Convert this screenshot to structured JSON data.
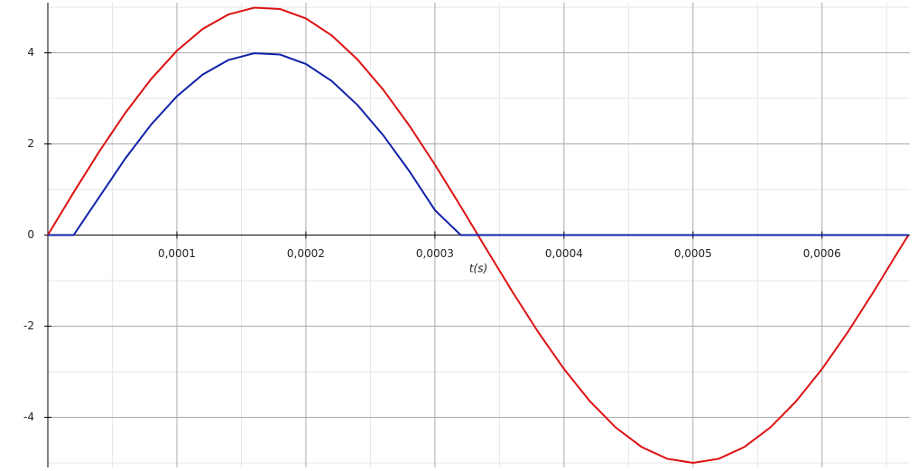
{
  "chart_data": {
    "type": "line",
    "x_label": "t(s)",
    "x": [
      0,
      2e-05,
      4e-05,
      6e-05,
      8e-05,
      0.0001,
      0.00012,
      0.00014,
      0.00016,
      0.00018,
      0.0002,
      0.00022,
      0.00024,
      0.00026,
      0.00028,
      0.0003,
      0.00032,
      0.00034,
      0.00036,
      0.00038,
      0.0004,
      0.00042,
      0.00044,
      0.00046,
      0.00048,
      0.0005,
      0.00052,
      0.00054,
      0.00056,
      0.00058,
      0.0006,
      0.00062,
      0.00064,
      0.00066,
      0.000667
    ],
    "series": [
      {
        "color": "#dd1111",
        "values": [
          0,
          0.937,
          1.84,
          2.679,
          3.423,
          4.045,
          4.524,
          4.843,
          4.99,
          4.961,
          4.755,
          4.381,
          3.853,
          3.187,
          2.409,
          1.545,
          0.627,
          -0.314,
          -1.243,
          -2.129,
          -2.939,
          -3.645,
          -4.222,
          -4.649,
          -4.911,
          -5,
          -4.911,
          -4.649,
          -4.222,
          -3.645,
          -2.939,
          -2.129,
          -1.243,
          -0.314,
          0
        ]
      },
      {
        "color": "#1122aa",
        "values": [
          0,
          0,
          0.84,
          1.679,
          2.423,
          3.045,
          3.524,
          3.843,
          3.99,
          3.961,
          3.755,
          3.381,
          2.853,
          2.187,
          1.409,
          0.545,
          0,
          0,
          0,
          0,
          0,
          0,
          0,
          0,
          0,
          0,
          0,
          0,
          0,
          0,
          0,
          0,
          0,
          0,
          0
        ]
      }
    ],
    "xlim": [
      0,
      0.000668
    ],
    "ylim": [
      -5.1,
      5.1
    ],
    "xticks": [
      {
        "value": 0.0001,
        "label": "0,0001"
      },
      {
        "value": 0.0002,
        "label": "0,0002"
      },
      {
        "value": 0.0003,
        "label": "0,0003"
      },
      {
        "value": 0.0004,
        "label": "0,0004"
      },
      {
        "value": 0.0005,
        "label": "0,0005"
      },
      {
        "value": 0.0006,
        "label": "0,0006"
      }
    ],
    "yticks": [
      -4,
      -2,
      0,
      2,
      4
    ],
    "grid": true
  }
}
